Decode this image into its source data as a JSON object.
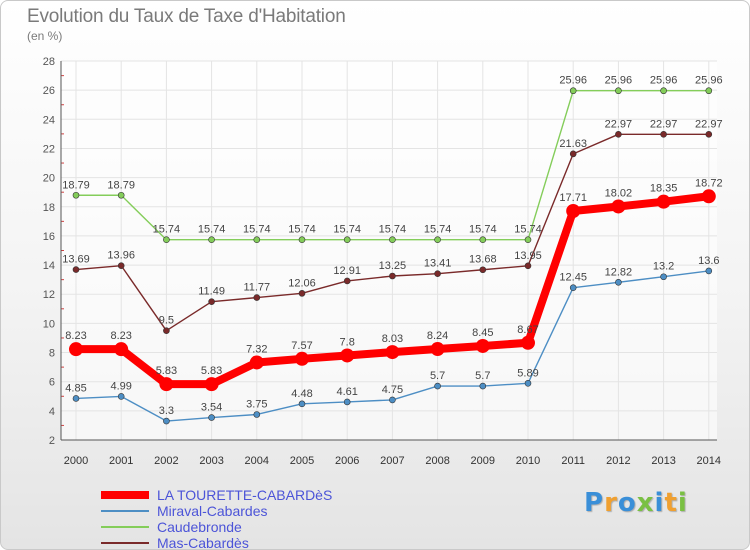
{
  "title": "Evolution du Taux de Taxe d'Habitation",
  "unit_label": "(en %)",
  "logo": {
    "text": "Proxiti",
    "colors": [
      "#3a8fd8",
      "#f0a030",
      "#3a8fd8",
      "#7ac043",
      "#3a8fd8",
      "#f0a030",
      "#7ac043"
    ]
  },
  "chart_data": {
    "type": "line",
    "title": "Evolution du Taux de Taxe d'Habitation",
    "ylabel": "(en %)",
    "xlabel": "",
    "x": [
      "2000",
      "2001",
      "2002",
      "2003",
      "2004",
      "2005",
      "2006",
      "2007",
      "2008",
      "2009",
      "2010",
      "2011",
      "2012",
      "2013",
      "2014"
    ],
    "ylim": [
      2,
      28
    ],
    "yticks": [
      "2",
      "4",
      "6",
      "8",
      "10",
      "12",
      "14",
      "16",
      "18",
      "20",
      "22",
      "24",
      "26",
      "28"
    ],
    "grid": true,
    "legend_position": "bottom-left",
    "series": [
      {
        "name": "LA TOURETTE-CABARDèS",
        "color": "#ff0000",
        "values": [
          8.23,
          8.23,
          5.83,
          5.83,
          7.32,
          7.57,
          7.8,
          8.03,
          8.24,
          8.45,
          8.67,
          17.71,
          18.02,
          18.35,
          18.72
        ],
        "labels": [
          "8.23",
          "8.23",
          "5.83",
          "5.83",
          "7.32",
          "7.57",
          "7.8",
          "8.03",
          "8.24",
          "8.45",
          "8.67",
          "17.71",
          "18.02",
          "18.35",
          "18.72"
        ]
      },
      {
        "name": "Miraval-Cabardes",
        "color": "#4d8ec4",
        "values": [
          4.85,
          4.99,
          3.3,
          3.54,
          3.75,
          4.48,
          4.61,
          4.75,
          5.7,
          5.7,
          5.89,
          12.45,
          12.82,
          13.2,
          13.6
        ],
        "labels": [
          "4.85",
          "4.99",
          "3.3",
          "3.54",
          "3.75",
          "4.48",
          "4.61",
          "4.75",
          "5.7",
          "5.7",
          "5.89",
          "12.45",
          "12.82",
          "13.2",
          "13.6"
        ]
      },
      {
        "name": "Caudebronde",
        "color": "#84cd5a",
        "values": [
          18.79,
          18.79,
          15.74,
          15.74,
          15.74,
          15.74,
          15.74,
          15.74,
          15.74,
          15.74,
          15.74,
          25.96,
          25.96,
          25.96,
          25.96
        ],
        "labels": [
          "18.79",
          "18.79",
          "15.74",
          "15.74",
          "15.74",
          "15.74",
          "15.74",
          "15.74",
          "15.74",
          "15.74",
          "15.74",
          "25.96",
          "25.96",
          "25.96",
          "25.96"
        ]
      },
      {
        "name": "Mas-Cabardès",
        "color": "#7a2a2a",
        "values": [
          13.69,
          13.96,
          9.5,
          11.49,
          11.77,
          12.06,
          12.91,
          13.25,
          13.41,
          13.68,
          13.95,
          21.63,
          22.97,
          22.97,
          22.97
        ],
        "labels": [
          "13.69",
          "13.96",
          "9.5",
          "11.49",
          "11.77",
          "12.06",
          "12.91",
          "13.25",
          "13.41",
          "13.68",
          "13.95",
          "21.63",
          "22.97",
          "22.97",
          "22.97"
        ]
      }
    ]
  }
}
